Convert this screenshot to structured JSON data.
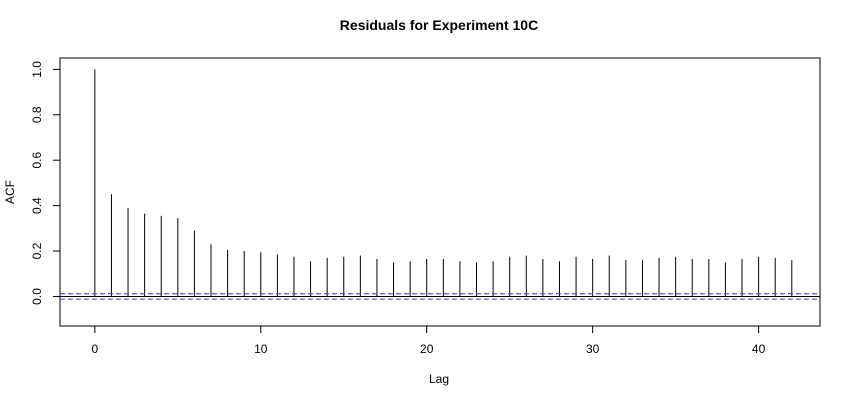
{
  "chart_data": {
    "type": "bar",
    "title": "Residuals for Experiment 10C",
    "xlabel": "Lag",
    "ylabel": "ACF",
    "xlim": [
      -2.1,
      43.7
    ],
    "ylim": [
      -0.13,
      1.05
    ],
    "x_ticks": [
      0,
      10,
      20,
      30,
      40
    ],
    "y_ticks": [
      0.0,
      0.2,
      0.4,
      0.6,
      0.8,
      1.0
    ],
    "y_tick_labels": [
      "0.0",
      "0.2",
      "0.4",
      "0.6",
      "0.8",
      "1.0"
    ],
    "lags": [
      0,
      1,
      2,
      3,
      4,
      5,
      6,
      7,
      8,
      9,
      10,
      11,
      12,
      13,
      14,
      15,
      16,
      17,
      18,
      19,
      20,
      21,
      22,
      23,
      24,
      25,
      26,
      27,
      28,
      29,
      30,
      31,
      32,
      33,
      34,
      35,
      36,
      37,
      38,
      39,
      40,
      41,
      42
    ],
    "acf": [
      1.0,
      0.45,
      0.39,
      0.365,
      0.355,
      0.345,
      0.29,
      0.23,
      0.205,
      0.2,
      0.195,
      0.185,
      0.175,
      0.155,
      0.17,
      0.175,
      0.18,
      0.165,
      0.15,
      0.155,
      0.165,
      0.165,
      0.155,
      0.15,
      0.155,
      0.175,
      0.18,
      0.165,
      0.155,
      0.175,
      0.165,
      0.18,
      0.16,
      0.16,
      0.17,
      0.175,
      0.165,
      0.165,
      0.15,
      0.165,
      0.175,
      0.17,
      0.16
    ],
    "confidence_bounds": [
      0.012,
      -0.012
    ],
    "confidence_color": "#5555cc",
    "grid": false,
    "legend": "none"
  }
}
